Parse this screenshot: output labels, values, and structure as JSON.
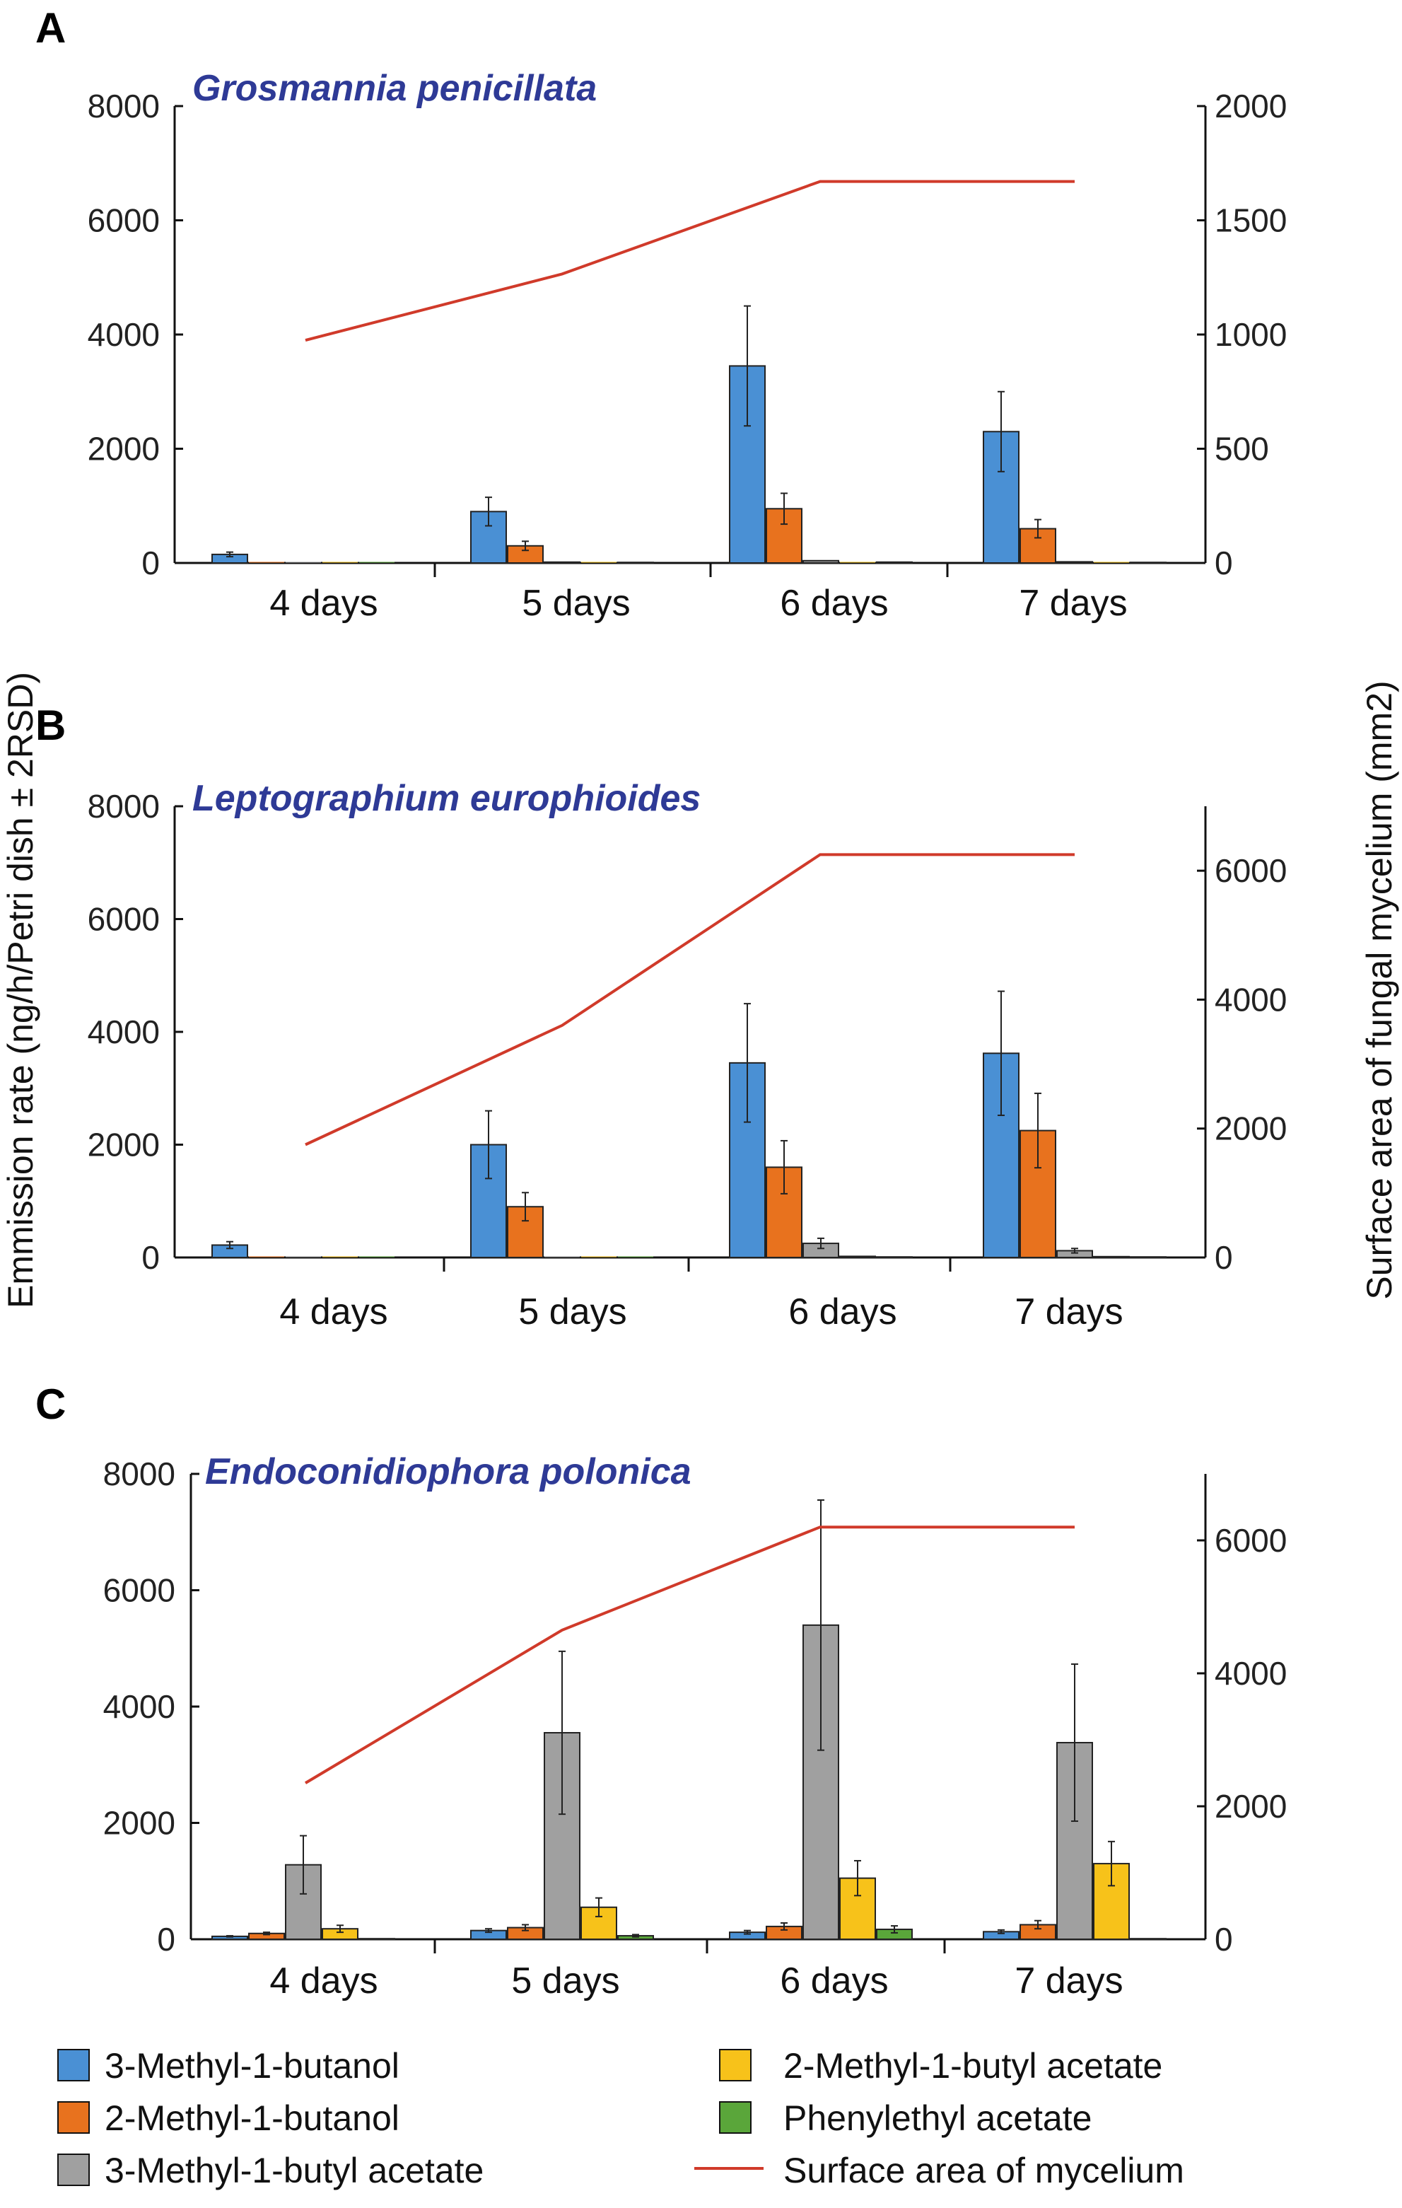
{
  "shared_axes": {
    "left_label": "Emmission rate (ng/h/Petri dish ± 2RSD)",
    "right_label": "Surface area of fungal mycelium (mm2)"
  },
  "legend": {
    "items": [
      {
        "label": "3-Methyl-1-butanol",
        "color": "#4a90d4",
        "kind": "box"
      },
      {
        "label": "2-Methyl-1-butanol",
        "color": "#e8721e",
        "kind": "box"
      },
      {
        "label": "3-Methyl-1-butyl acetate",
        "color": "#a0a0a0",
        "kind": "box"
      },
      {
        "label": "2-Methyl-1-butyl acetate",
        "color": "#f7c21a",
        "kind": "box"
      },
      {
        "label": "Phenylethyl acetate",
        "color": "#5aa63a",
        "kind": "box"
      },
      {
        "label": "Surface area of mycelium",
        "color": "#d03a2a",
        "kind": "line"
      }
    ]
  },
  "chart_data": [
    {
      "type": "bar",
      "panel": "A",
      "title": "Grosmannia penicillata",
      "categories": [
        "4 days",
        "5 days",
        "6 days",
        "7 days"
      ],
      "ylim": [
        0,
        8000
      ],
      "yticks": [
        0,
        2000,
        4000,
        6000,
        8000
      ],
      "y2lim": [
        0,
        2000
      ],
      "y2ticks": [
        0,
        500,
        1000,
        1500,
        2000
      ],
      "series": [
        {
          "name": "3-Methyl-1-butanol",
          "color": "#4a90d4",
          "values": [
            150,
            900,
            3450,
            2300
          ],
          "err": [
            40,
            250,
            1050,
            700
          ]
        },
        {
          "name": "2-Methyl-1-butanol",
          "color": "#e8721e",
          "values": [
            0,
            300,
            950,
            600
          ],
          "err": [
            0,
            80,
            270,
            160
          ]
        },
        {
          "name": "3-Methyl-1-butyl acetate",
          "color": "#a0a0a0",
          "values": [
            0,
            15,
            40,
            20
          ],
          "err": [
            0,
            0,
            0,
            0
          ]
        },
        {
          "name": "2-Methyl-1-butyl acetate",
          "color": "#f7c21a",
          "values": [
            0,
            0,
            0,
            0
          ],
          "err": [
            0,
            0,
            0,
            0
          ]
        },
        {
          "name": "Phenylethyl acetate",
          "color": "#5aa63a",
          "values": [
            0,
            10,
            15,
            10
          ],
          "err": [
            0,
            0,
            0,
            0
          ]
        }
      ],
      "line": {
        "name": "Surface area of mycelium",
        "color": "#d03a2a",
        "values": [
          975,
          1265,
          1670,
          1670
        ]
      }
    },
    {
      "type": "bar",
      "panel": "B",
      "title": "Leptographium europhioides",
      "categories": [
        "4 days",
        "5 days",
        "6 days",
        "7 days"
      ],
      "ylim": [
        0,
        8000
      ],
      "yticks": [
        0,
        2000,
        4000,
        6000,
        8000
      ],
      "y2lim": [
        0,
        7000
      ],
      "y2ticks": [
        0,
        2000,
        4000,
        6000
      ],
      "series": [
        {
          "name": "3-Methyl-1-butanol",
          "color": "#4a90d4",
          "values": [
            220,
            2000,
            3450,
            3620
          ],
          "err": [
            60,
            600,
            1050,
            1100
          ]
        },
        {
          "name": "2-Methyl-1-butanol",
          "color": "#e8721e",
          "values": [
            0,
            900,
            1600,
            2250
          ],
          "err": [
            0,
            250,
            470,
            660
          ]
        },
        {
          "name": "3-Methyl-1-butyl acetate",
          "color": "#a0a0a0",
          "values": [
            0,
            0,
            250,
            120
          ],
          "err": [
            0,
            0,
            90,
            40
          ]
        },
        {
          "name": "2-Methyl-1-butyl acetate",
          "color": "#f7c21a",
          "values": [
            0,
            0,
            20,
            15
          ],
          "err": [
            0,
            0,
            0,
            0
          ]
        },
        {
          "name": "Phenylethyl acetate",
          "color": "#5aa63a",
          "values": [
            0,
            0,
            10,
            10
          ],
          "err": [
            0,
            0,
            0,
            0
          ]
        }
      ],
      "line": {
        "name": "Surface area of mycelium",
        "color": "#d03a2a",
        "values": [
          1750,
          3600,
          6250,
          6250
        ]
      }
    },
    {
      "type": "bar",
      "panel": "C",
      "title": "Endoconidiophora polonica",
      "categories": [
        "4 days",
        "5 days",
        "6 days",
        "7 days"
      ],
      "ylim": [
        0,
        8000
      ],
      "yticks": [
        0,
        2000,
        4000,
        6000,
        8000
      ],
      "y2lim": [
        0,
        7000
      ],
      "y2ticks": [
        0,
        2000,
        4000,
        6000
      ],
      "series": [
        {
          "name": "3-Methyl-1-butanol",
          "color": "#4a90d4",
          "values": [
            50,
            150,
            120,
            130
          ],
          "err": [
            10,
            30,
            30,
            30
          ]
        },
        {
          "name": "2-Methyl-1-butanol",
          "color": "#e8721e",
          "values": [
            100,
            200,
            220,
            250
          ],
          "err": [
            20,
            50,
            60,
            70
          ]
        },
        {
          "name": "3-Methyl-1-butyl acetate",
          "color": "#a0a0a0",
          "values": [
            1280,
            3550,
            5400,
            3380
          ],
          "err": [
            500,
            1400,
            2150,
            1350
          ]
        },
        {
          "name": "2-Methyl-1-butyl acetate",
          "color": "#f7c21a",
          "values": [
            180,
            550,
            1050,
            1300
          ],
          "err": [
            60,
            160,
            300,
            380
          ]
        },
        {
          "name": "Phenylethyl acetate",
          "color": "#5aa63a",
          "values": [
            10,
            60,
            170,
            10
          ],
          "err": [
            0,
            20,
            60,
            0
          ]
        }
      ],
      "line": {
        "name": "Surface area of mycelium",
        "color": "#d03a2a",
        "values": [
          2350,
          4650,
          6200,
          6200
        ]
      }
    }
  ]
}
